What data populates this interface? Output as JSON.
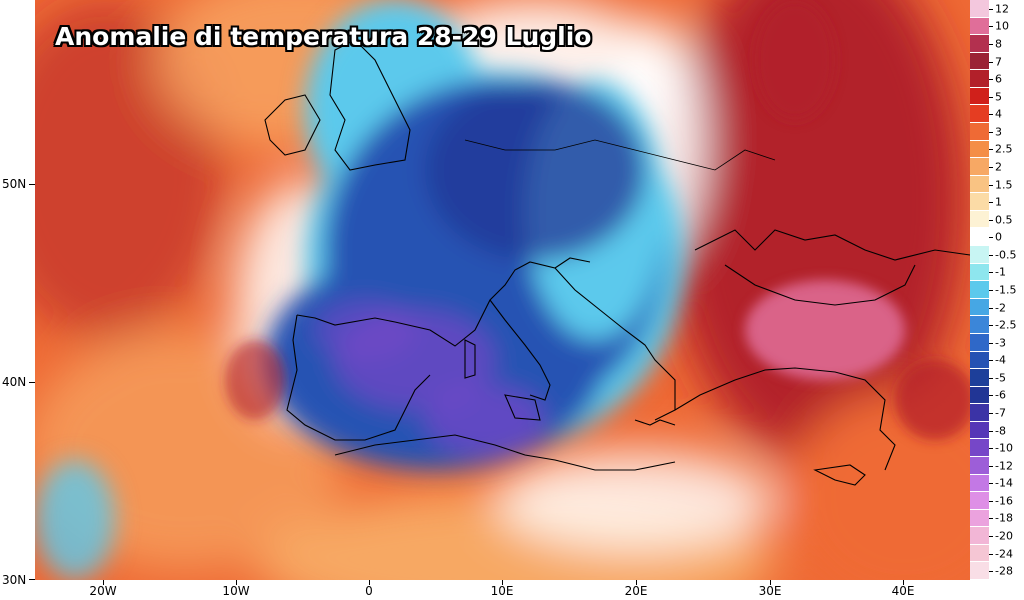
{
  "title": "Anomalie di temperatura 28-29 Luglio",
  "y_axis": {
    "labels": [
      {
        "text": "50N"
      },
      {
        "text": "40N"
      },
      {
        "text": "30N"
      }
    ]
  },
  "x_axis": {
    "labels": [
      {
        "text": "20W"
      },
      {
        "text": "10W"
      },
      {
        "text": "0"
      },
      {
        "text": "10E"
      },
      {
        "text": "20E"
      },
      {
        "text": "30E"
      },
      {
        "text": "40E"
      }
    ]
  },
  "legend": {
    "levels": [
      {
        "label": "12",
        "color": "#f3c7dd"
      },
      {
        "label": "10",
        "color": "#e06e99"
      },
      {
        "label": "8",
        "color": "#b3304f"
      },
      {
        "label": "7",
        "color": "#9b2235"
      },
      {
        "label": "6",
        "color": "#b2202a"
      },
      {
        "label": "5",
        "color": "#d0201b"
      },
      {
        "label": "4",
        "color": "#e53d22"
      },
      {
        "label": "3",
        "color": "#ef6a35"
      },
      {
        "label": "2.5",
        "color": "#f48e47"
      },
      {
        "label": "2",
        "color": "#f7a864"
      },
      {
        "label": "1.5",
        "color": "#f9c383"
      },
      {
        "label": "1",
        "color": "#fbdba6"
      },
      {
        "label": "0.5",
        "color": "#fdf2d4"
      },
      {
        "label": "0",
        "color": "#ffffff"
      },
      {
        "label": "-0.5",
        "color": "#c8f5f3"
      },
      {
        "label": "-1",
        "color": "#8ee6ee"
      },
      {
        "label": "-1.5",
        "color": "#5cc9ec"
      },
      {
        "label": "-2",
        "color": "#46a7e4"
      },
      {
        "label": "-2.5",
        "color": "#3b86d9"
      },
      {
        "label": "-3",
        "color": "#2f68c8"
      },
      {
        "label": "-4",
        "color": "#2552b3"
      },
      {
        "label": "-5",
        "color": "#1d3f9a"
      },
      {
        "label": "-6",
        "color": "#213595"
      },
      {
        "label": "-7",
        "color": "#3b33a6"
      },
      {
        "label": "-8",
        "color": "#5637b7"
      },
      {
        "label": "-10",
        "color": "#7647c8"
      },
      {
        "label": "-12",
        "color": "#9d5ed8"
      },
      {
        "label": "-14",
        "color": "#c378e5"
      },
      {
        "label": "-16",
        "color": "#de8fe6"
      },
      {
        "label": "-18",
        "color": "#eba2de"
      },
      {
        "label": "-20",
        "color": "#f2b6d6"
      },
      {
        "label": "-24",
        "color": "#f5c6d4"
      },
      {
        "label": "-28",
        "color": "#f9dee6"
      }
    ]
  },
  "colors": {
    "warm_strong": "#b2202a",
    "warm": "#ef6a35",
    "warm_light": "#f7a864",
    "cold": "#2552b3",
    "cold_strong": "#213595",
    "cold_purple": "#7647c8",
    "cold_light": "#5cc9ec",
    "neutral": "#ffffff",
    "hot_pink": "#e06e99"
  }
}
